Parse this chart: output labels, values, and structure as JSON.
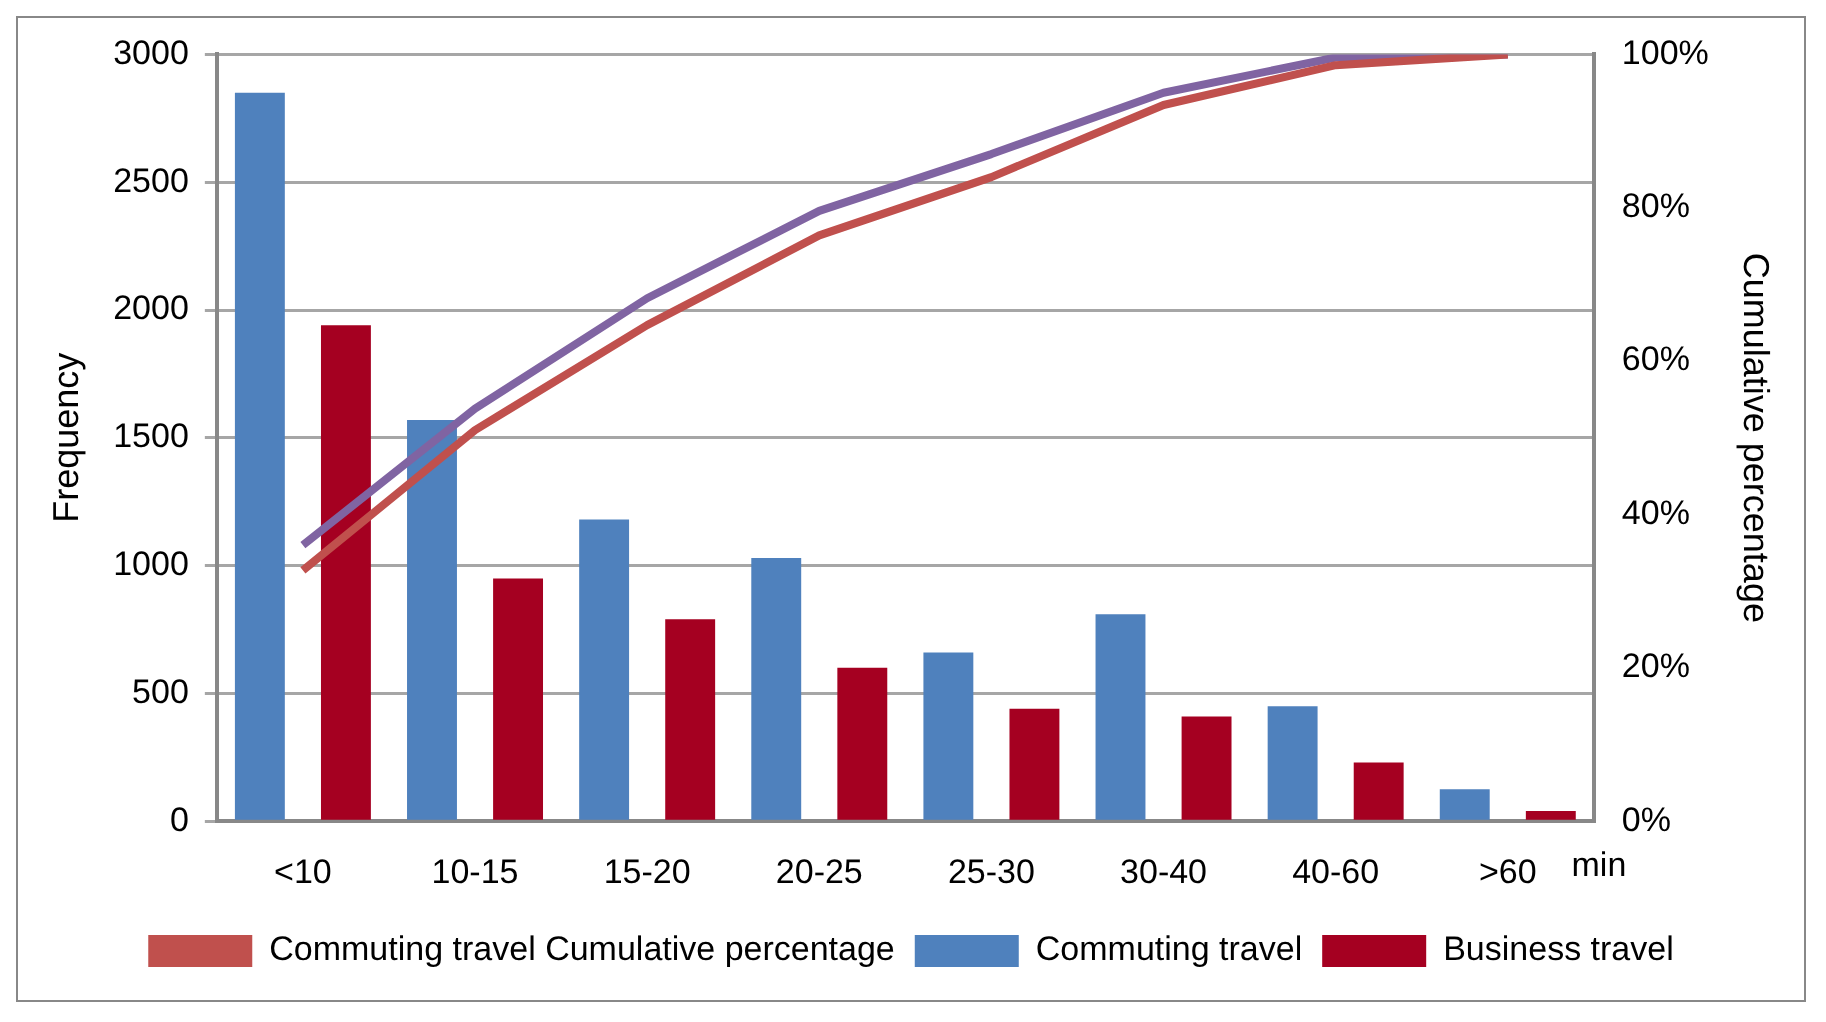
{
  "chart_data": {
    "type": "bar",
    "xlabel": "min",
    "ylabel": "Frequency",
    "y2label": "Cumulative percentage",
    "categories": [
      "<10",
      "10-15",
      "15-20",
      "20-25",
      "25-30",
      "30-40",
      "40-60",
      ">60"
    ],
    "series": [
      {
        "name": "Commuting travel",
        "color": "#4f81bd",
        "values": [
          2850,
          1570,
          1180,
          1030,
          660,
          810,
          450,
          125
        ]
      },
      {
        "name": "Business travel",
        "color": "#a50021",
        "values": [
          1940,
          950,
          790,
          600,
          440,
          410,
          230,
          40
        ]
      },
      {
        "type": "line",
        "name": "Commuting travel Cumulative percentage",
        "color": "#c0504d",
        "axis": "y2",
        "values": [
          32.7,
          51,
          64.7,
          76.4,
          84,
          93.4,
          98.6,
          100
        ]
      },
      {
        "type": "line",
        "color": "#8064a2",
        "axis": "y2",
        "values": [
          36,
          53.8,
          68.2,
          79.6,
          87,
          95,
          99.6,
          100
        ]
      }
    ],
    "ylim": [
      0,
      3000
    ],
    "yticks": [
      0,
      500,
      1000,
      1500,
      2000,
      2500,
      3000
    ],
    "y2lim": [
      0,
      100
    ],
    "y2ticks": [
      {
        "value": 0,
        "label": "0%"
      },
      {
        "value": 20,
        "label": "20%"
      },
      {
        "value": 40,
        "label": "40%"
      },
      {
        "value": 60,
        "label": "60%"
      },
      {
        "value": 80,
        "label": "80%"
      },
      {
        "value": 100,
        "label": "100%"
      }
    ],
    "grid": "y",
    "legend": "bottom",
    "marker": "none",
    "line_style": "solid"
  }
}
